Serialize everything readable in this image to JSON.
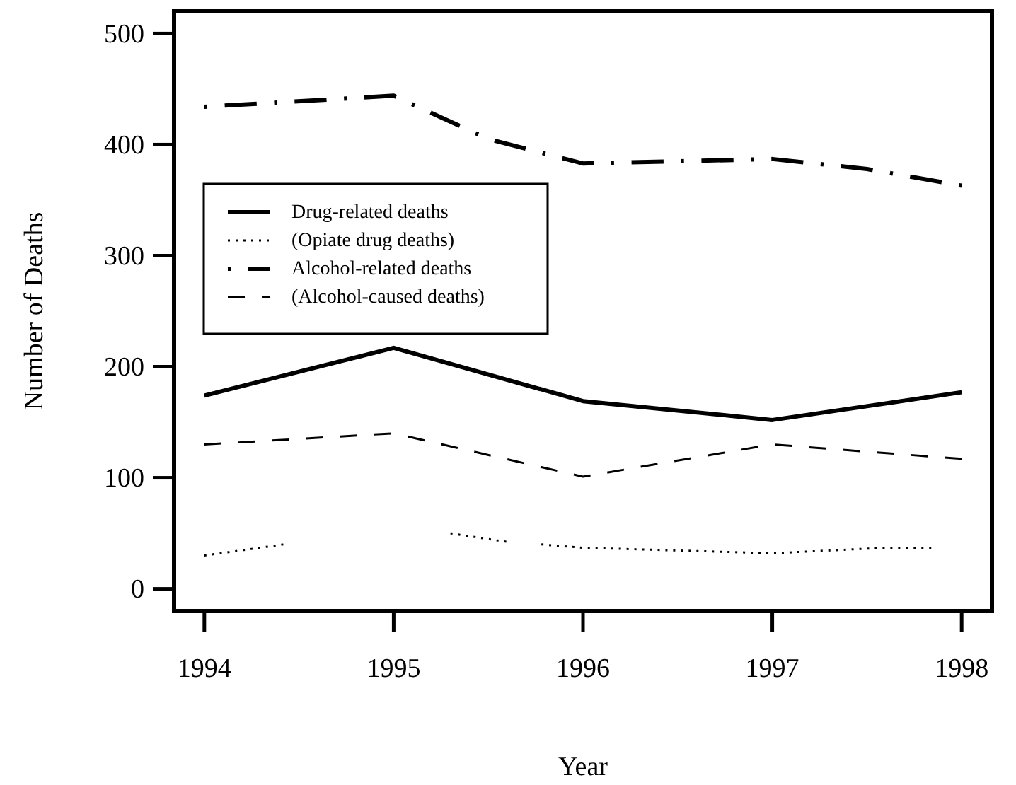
{
  "chart_data": {
    "type": "line",
    "xlabel": "Year",
    "ylabel": "Number of Deaths",
    "xlim": [
      1993.84,
      1998.16
    ],
    "ylim": [
      -20,
      520
    ],
    "xticks": [
      1994,
      1995,
      1996,
      1997,
      1998
    ],
    "yticks": [
      0,
      100,
      200,
      300,
      400,
      500
    ],
    "grid": false,
    "legend": "top left",
    "x": [
      1994,
      1995,
      1996,
      1997,
      1998
    ],
    "series": [
      {
        "name": "Drug-related deaths",
        "color": "#000000",
        "line_style": "solid",
        "values": [
          174,
          217,
          169,
          152,
          177
        ]
      },
      {
        "name": "(Opiate drug deaths)",
        "color": "#000000",
        "line_style": "dotted",
        "x": [
          1994,
          1994.42,
          1994.7,
          1995.3,
          1995.61,
          1995.7,
          1995.78,
          1996,
          1997,
          1997.6,
          1997.84
        ],
        "values": [
          30,
          40,
          null,
          50,
          42,
          null,
          40,
          37,
          32,
          37,
          37
        ]
      },
      {
        "name": "Alcohol-related deaths",
        "color": "#000000",
        "line_style": "dashdot",
        "x": [
          1994,
          1995,
          1995.5,
          1996,
          1997,
          1997.5,
          1998
        ],
        "values": [
          434,
          444,
          405,
          383,
          387,
          378,
          363
        ]
      },
      {
        "name": "(Alcohol-caused deaths)",
        "color": "#000000",
        "line_style": "dashed",
        "values": [
          130,
          140,
          101,
          130,
          117
        ]
      }
    ]
  }
}
